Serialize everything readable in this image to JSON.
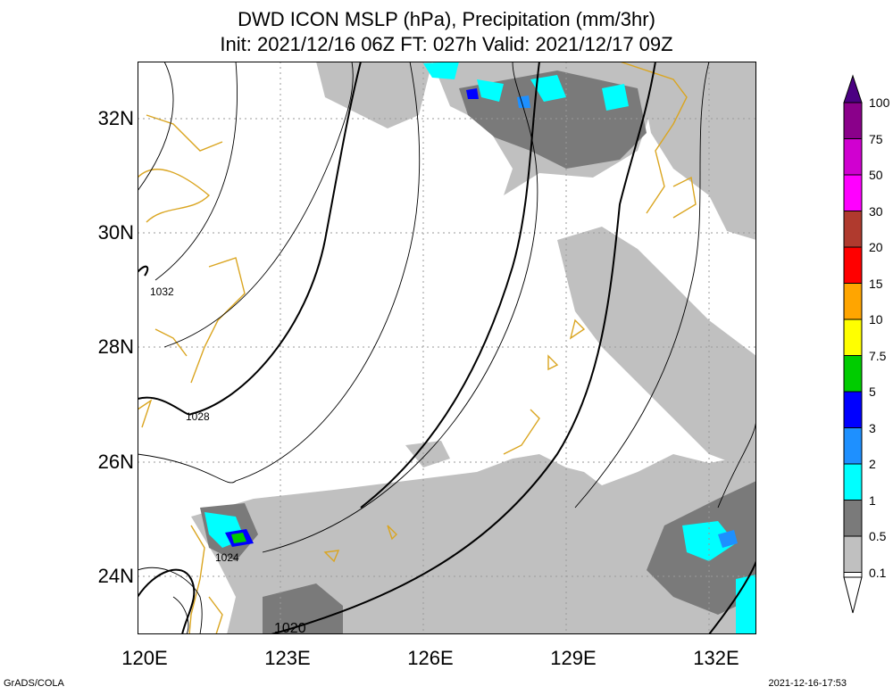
{
  "title": {
    "line1": "DWD ICON MSLP (hPa), Precipitation (mm/3hr)",
    "line2": "Init: 2021/12/16 06Z  FT: 027h  Valid: 2021/12/17 09Z"
  },
  "axes": {
    "lat_labels": [
      "32N",
      "30N",
      "28N",
      "26N",
      "24N"
    ],
    "lon_labels": [
      "120E",
      "123E",
      "126E",
      "129E",
      "132E"
    ],
    "lat_range": [
      23,
      33
    ],
    "lon_range": [
      120,
      133
    ]
  },
  "isobar_labels": [
    "1032",
    "1028",
    "1024",
    "1020"
  ],
  "colorbar": {
    "labels": [
      "100",
      "75",
      "50",
      "30",
      "20",
      "15",
      "10",
      "7.5",
      "5",
      "3",
      "2",
      "1",
      "0.5",
      "0.1"
    ],
    "colors": [
      "#4b0082",
      "#8a008a",
      "#d000d0",
      "#ff00ff",
      "#b03a2e",
      "#ff0000",
      "#ffa500",
      "#ffff00",
      "#00cc00",
      "#0000ff",
      "#1e90ff",
      "#00ffff",
      "#7a7a7a",
      "#c0c0c0",
      "#ffffff"
    ]
  },
  "footer": {
    "credit": "GrADS/COLA",
    "timestamp": "2021-12-16-17:53"
  }
}
